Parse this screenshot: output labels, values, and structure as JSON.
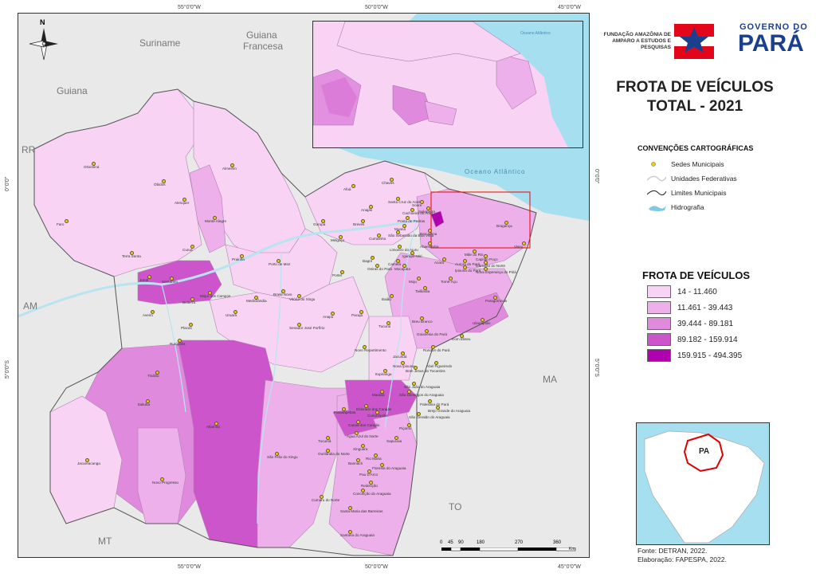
{
  "title": {
    "line1": "FROTA DE VEÍCULOS",
    "line2": "TOTAL - 2021"
  },
  "logos": {
    "fapespa_line1": "FUNDAÇÃO AMAZÔNIA DE",
    "fapespa_line2": "AMPARO A ESTUDOS E",
    "fapespa_line3": "PESQUISAS",
    "gov_line1": "GOVERNO DO",
    "gov_line2": "PARÁ"
  },
  "conventions": {
    "title": "CONVENÇÕES CARTOGRÁFICAS",
    "items": [
      "Sedes Municipais",
      "Unidades Federativas",
      "Limites Municipais",
      "Hidrografia"
    ]
  },
  "legend": {
    "title": "FROTA DE VEÍCULOS",
    "classes": [
      {
        "label": "14 - 11.460",
        "color": "#f8d3f4"
      },
      {
        "label": "11.461 - 39.443",
        "color": "#eeb0ea"
      },
      {
        "label": "39.444 - 89.181",
        "color": "#e08ade"
      },
      {
        "label": "89.182 - 159.914",
        "color": "#cc55cc"
      },
      {
        "label": "159.915 - 494.395",
        "color": "#b000b0"
      }
    ]
  },
  "neighbors": {
    "suriname": "Suriname",
    "guiana_fr_1": "Guiana",
    "guiana_fr_2": "Francesa",
    "guiana": "Guiana",
    "rr": "RR",
    "am": "AM",
    "mt": "MT",
    "ma": "MA",
    "to": "TO",
    "ocean": "Oceano Atlântico",
    "inset_ocean": "Oceano Atlântico",
    "pa": "PA"
  },
  "ticks": {
    "top": [
      "55°0'0\"W",
      "50°0'0\"W",
      "45°0'0\"W"
    ],
    "bottom": [
      "55°0'0\"W",
      "50°0'0\"W",
      "45°0'0\"W"
    ],
    "left": [
      "0°0'0\"",
      "5°0'0\"S"
    ],
    "right": [
      "0°0'0\"",
      "5°0'0\"S"
    ]
  },
  "north": "N",
  "scale": {
    "labels": [
      "0",
      "45",
      "90",
      "180",
      "270",
      "360"
    ],
    "unit": "Km"
  },
  "source": {
    "line1": "Fonte: DETRAN, 2022.",
    "line2": "Elaboração: FAPESPA, 2022."
  },
  "municipalities": [
    "Oriximiná",
    "Óbidos",
    "Alenquer",
    "Almeirim",
    "Monte Alegre",
    "Faro",
    "Terra Santa",
    "Curuá",
    "Prainha",
    "Juruti",
    "Santarém",
    "Belterra",
    "Mojuí dos Campos",
    "Porto de Moz",
    "Medicilândia",
    "Brasil Novo",
    "Vitória do Xingu",
    "Senador José Porfírio",
    "Uruará",
    "Placas",
    "Aveiro",
    "Rurópolis",
    "Trairão",
    "Itaituba",
    "Jacareacanga",
    "Novo Progresso",
    "Altamira",
    "São Félix do Xingu",
    "Ourilândia do Norte",
    "Tucumã",
    "Cumaru do Norte",
    "Santana do Araguaia",
    "Santa Maria das Barreiras",
    "Conceição do Araguaia",
    "Redenção",
    "Pau D'Arco",
    "Floresta do Araguaia",
    "Rio Maria",
    "Bannach",
    "Xinguara",
    "Sapucaia",
    "Água Azul do Norte",
    "Canaã dos Carajás",
    "Parauapebas",
    "Curionópolis",
    "Eldorado dos Carajás",
    "Marabá",
    "São Domingos do Araguaia",
    "São João do Araguaia",
    "Palestina do Pará",
    "Brejo Grande do Araguaia",
    "São Geraldo do Araguaia",
    "Piçarra",
    "Bom Jesus do Tocantins",
    "Itupiranga",
    "Nova Ipixuna",
    "Jacundá",
    "Rondon do Pará",
    "Abel Figueiredo",
    "Novo Repartimento",
    "Tucuruí",
    "Breu Branco",
    "Goianésia do Pará",
    "Dom Eliseu",
    "Ulianópolis",
    "Paragominas",
    "Tailândia",
    "Moju",
    "Baião",
    "Pacajá",
    "Anapu",
    "Portel",
    "Bagre",
    "Oeiras do Pará",
    "Cametá",
    "Limoeiro do Ajuru",
    "Igarapé-Miri",
    "Abaetetuba",
    "Barcarena",
    "Breves",
    "Melgaço",
    "Gurupá",
    "Curralinho",
    "São Sebastião da Boa Vista",
    "Muaná",
    "Ponta de Pedras",
    "Anajás",
    "Afuá",
    "Chaves",
    "Santa Cruz do Arari",
    "Soure",
    "Salvaterra",
    "Cachoeira do Arari",
    "Mocajuba",
    "Acará",
    "Tomé-Açu",
    "Ipixuna do Pará",
    "Mãe do Rio",
    "Capitão Poço",
    "Garrafão do Norte",
    "Nova Esperança do Piriá",
    "Aurora do Pará",
    "Bragança",
    "Viseu"
  ]
}
